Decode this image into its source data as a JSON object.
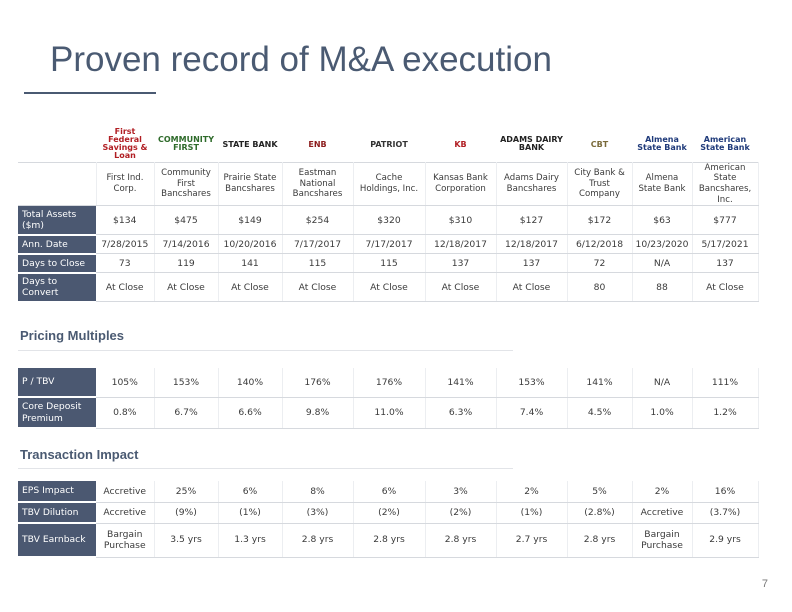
{
  "title": "Proven record of M&A execution",
  "logos": [
    {
      "name": "first-federal-logo",
      "text": "First Federal Savings & Loan",
      "color": "#b11e23"
    },
    {
      "name": "community-first-logo",
      "text": "COMMUNITY FIRST",
      "color": "#2f6b2b"
    },
    {
      "name": "prairie-state-logo",
      "text": "STATE BANK",
      "color": "#222222"
    },
    {
      "name": "eastman-logo",
      "text": "ENB",
      "color": "#8c1d1d"
    },
    {
      "name": "patriot-logo",
      "text": "PATRIOT",
      "color": "#333333"
    },
    {
      "name": "kansas-bank-logo",
      "text": "KB",
      "color": "#b11e23"
    },
    {
      "name": "adams-dairy-logo",
      "text": "ADAMS DAIRY BANK",
      "color": "#222222"
    },
    {
      "name": "city-bank-logo",
      "text": "CBT",
      "color": "#7a6a3a"
    },
    {
      "name": "almena-logo",
      "text": "Almena State Bank",
      "color": "#1f3a7a"
    },
    {
      "name": "american-state-logo",
      "text": "American State Bank",
      "color": "#1f3a7a"
    }
  ],
  "companies": [
    "First Ind. Corp.",
    "Community First Bancshares",
    "Prairie State Bancshares",
    "Eastman National Bancshares",
    "Cache Holdings, Inc.",
    "Kansas Bank Corporation",
    "Adams Dairy Bancshares",
    "City Bank & Trust Company",
    "Almena State Bank",
    "American State Bancshares, Inc."
  ],
  "deal_rows": [
    {
      "label": "Total Assets ($m)",
      "values": [
        "$134",
        "$475",
        "$149",
        "$254",
        "$320",
        "$310",
        "$127",
        "$172",
        "$63",
        "$777"
      ]
    },
    {
      "label": "Ann. Date",
      "values": [
        "7/28/2015",
        "7/14/2016",
        "10/20/2016",
        "7/17/2017",
        "7/17/2017",
        "12/18/2017",
        "12/18/2017",
        "6/12/2018",
        "10/23/2020",
        "5/17/2021"
      ]
    },
    {
      "label": "Days to Close",
      "values": [
        "73",
        "119",
        "141",
        "115",
        "115",
        "137",
        "137",
        "72",
        "N/A",
        "137"
      ]
    },
    {
      "label": "Days to Convert",
      "values": [
        "At Close",
        "At Close",
        "At Close",
        "At Close",
        "At Close",
        "At Close",
        "At Close",
        "80",
        "88",
        "At Close"
      ]
    }
  ],
  "pricing": {
    "heading": "Pricing Multiples",
    "rows": [
      {
        "label": "P / TBV",
        "values": [
          "105%",
          "153%",
          "140%",
          "176%",
          "176%",
          "141%",
          "153%",
          "141%",
          "N/A",
          "111%"
        ]
      },
      {
        "label": "Core Deposit Premium",
        "values": [
          "0.8%",
          "6.7%",
          "6.6%",
          "9.8%",
          "11.0%",
          "6.3%",
          "7.4%",
          "4.5%",
          "1.0%",
          "1.2%"
        ]
      }
    ]
  },
  "impact": {
    "heading": "Transaction Impact",
    "rows": [
      {
        "label": "EPS Impact",
        "values": [
          "Accretive",
          "25%",
          "6%",
          "8%",
          "6%",
          "3%",
          "2%",
          "5%",
          "2%",
          "16%"
        ]
      },
      {
        "label": "TBV Dilution",
        "values": [
          "Accretive",
          "(9%)",
          "(1%)",
          "(3%)",
          "(2%)",
          "(2%)",
          "(1%)",
          "(2.8%)",
          "Accretive",
          "(3.7%)"
        ]
      },
      {
        "label": "TBV Earnback",
        "values": [
          "Bargain Purchase",
          "3.5 yrs",
          "1.3 yrs",
          "2.8 yrs",
          "2.8 yrs",
          "2.8 yrs",
          "2.7 yrs",
          "2.8 yrs",
          "Bargain Purchase",
          "2.9 yrs"
        ]
      }
    ]
  },
  "page_number": "7"
}
